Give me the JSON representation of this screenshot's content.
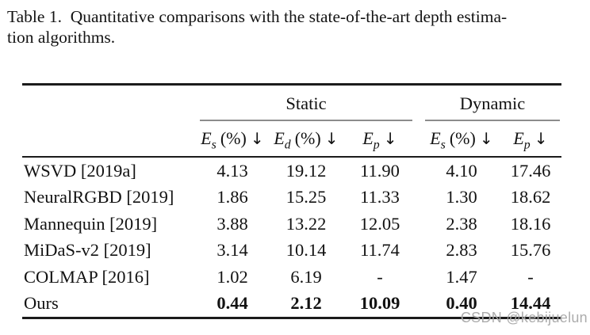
{
  "caption": {
    "line1": "Table 1.  Quantitative comparisons with the state-of-the-art depth estima-",
    "line2": "tion algorithms."
  },
  "table": {
    "group_headers": [
      {
        "label": "Static"
      },
      {
        "label": "Dynamic"
      }
    ],
    "subheaders": [
      {
        "sym": "E",
        "sub": "s",
        "unit": "(%)",
        "arrow": "↓"
      },
      {
        "sym": "E",
        "sub": "d",
        "unit": "(%)",
        "arrow": "↓"
      },
      {
        "sym": "E",
        "sub": "p",
        "unit": "",
        "arrow": "↓"
      },
      {
        "sym": "E",
        "sub": "s",
        "unit": "(%)",
        "arrow": "↓"
      },
      {
        "sym": "E",
        "sub": "p",
        "unit": "",
        "arrow": "↓"
      }
    ],
    "rows": [
      {
        "method": "WSVD [2019a]",
        "values": [
          "4.13",
          "19.12",
          "11.90",
          "4.10",
          "17.46"
        ]
      },
      {
        "method": "NeuralRGBD [2019]",
        "values": [
          "1.86",
          "15.25",
          "11.33",
          "1.30",
          "18.62"
        ]
      },
      {
        "method": "Mannequin [2019]",
        "values": [
          "3.88",
          "13.22",
          "12.05",
          "2.38",
          "18.16"
        ]
      },
      {
        "method": "MiDaS-v2 [2019]",
        "values": [
          "3.14",
          "10.14",
          "11.74",
          "2.83",
          "15.76"
        ]
      },
      {
        "method": "COLMAP [2016]",
        "values": [
          "1.02",
          "6.19",
          "-",
          "1.47",
          "-"
        ]
      },
      {
        "method": "Ours",
        "values": [
          "0.44",
          "2.12",
          "10.09",
          "0.40",
          "14.44"
        ]
      }
    ]
  },
  "watermark": {
    "text": "CSDN @kebijuelun",
    "color": "#a8a8a8"
  },
  "colors": {
    "rule_dark": "#1b1b1b",
    "rule_gray": "#8c8c8c",
    "text": "#121212",
    "background": "#ffffff"
  }
}
